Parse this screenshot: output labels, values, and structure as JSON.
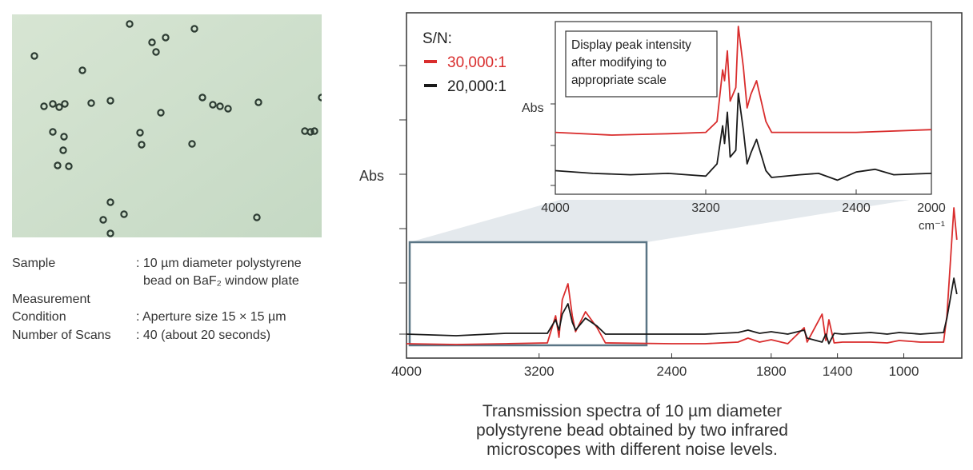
{
  "sample_info": {
    "rows": [
      {
        "label": "Sample",
        "value": ": 10 µm diameter polystyrene"
      },
      {
        "label": "",
        "value": "bead on BaF₂ window plate"
      },
      {
        "label": "Measurement",
        "value": ""
      },
      {
        "label": "Condition",
        "value": ": Aperture size 15 × 15 µm"
      },
      {
        "label": "Number of Scans",
        "value": ": 40 (about 20 seconds)"
      }
    ]
  },
  "caption": [
    "Transmission spectra of 10 µm diameter",
    "polystyrene bead obtained by two infrared",
    "microscopes with different noise levels."
  ],
  "chart_data": [
    {
      "type": "line",
      "panel": "main",
      "ylabel": "Abs",
      "xlim": [
        4000,
        650
      ],
      "xticks": [
        "4000",
        "3200",
        "2400",
        "1800",
        "1400",
        "1000"
      ],
      "legend_title": "S/N:",
      "series": [
        {
          "name": "30,000:1",
          "color": "#d92d2d",
          "points": [
            [
              4000,
              0.2
            ],
            [
              3700,
              0.19
            ],
            [
              3400,
              0.2
            ],
            [
              3150,
              0.21
            ],
            [
              3100,
              0.55
            ],
            [
              3080,
              0.28
            ],
            [
              3060,
              0.75
            ],
            [
              3026,
              0.95
            ],
            [
              3000,
              0.55
            ],
            [
              2980,
              0.35
            ],
            [
              2920,
              0.6
            ],
            [
              2850,
              0.4
            ],
            [
              2800,
              0.21
            ],
            [
              2400,
              0.2
            ],
            [
              2200,
              0.2
            ],
            [
              2000,
              0.22
            ],
            [
              1940,
              0.27
            ],
            [
              1870,
              0.22
            ],
            [
              1800,
              0.25
            ],
            [
              1700,
              0.2
            ],
            [
              1601,
              0.4
            ],
            [
              1583,
              0.22
            ],
            [
              1493,
              0.57
            ],
            [
              1470,
              0.24
            ],
            [
              1452,
              0.5
            ],
            [
              1420,
              0.21
            ],
            [
              1370,
              0.22
            ],
            [
              1200,
              0.22
            ],
            [
              1100,
              0.21
            ],
            [
              1028,
              0.24
            ],
            [
              900,
              0.22
            ],
            [
              760,
              0.22
            ],
            [
              740,
              0.55
            ],
            [
              698,
              1.9
            ],
            [
              680,
              1.5
            ]
          ]
        },
        {
          "name": "20,000:1",
          "color": "#1a1a1a",
          "points": [
            [
              4000,
              0.0
            ],
            [
              3700,
              -0.02
            ],
            [
              3400,
              0.01
            ],
            [
              3150,
              0.01
            ],
            [
              3100,
              0.18
            ],
            [
              3080,
              0.05
            ],
            [
              3060,
              0.25
            ],
            [
              3026,
              0.38
            ],
            [
              3000,
              0.15
            ],
            [
              2980,
              0.05
            ],
            [
              2920,
              0.2
            ],
            [
              2850,
              0.1
            ],
            [
              2800,
              0.0
            ],
            [
              2400,
              0.0
            ],
            [
              2200,
              0.0
            ],
            [
              2000,
              0.02
            ],
            [
              1940,
              0.05
            ],
            [
              1870,
              0.01
            ],
            [
              1800,
              0.03
            ],
            [
              1700,
              0.0
            ],
            [
              1601,
              0.05
            ],
            [
              1583,
              -0.05
            ],
            [
              1493,
              -0.1
            ],
            [
              1470,
              0.0
            ],
            [
              1452,
              -0.12
            ],
            [
              1420,
              0.01
            ],
            [
              1370,
              0.0
            ],
            [
              1200,
              0.02
            ],
            [
              1100,
              0.0
            ],
            [
              1028,
              0.02
            ],
            [
              900,
              0.0
            ],
            [
              760,
              0.02
            ],
            [
              740,
              0.2
            ],
            [
              698,
              0.7
            ],
            [
              680,
              0.5
            ]
          ]
        }
      ]
    },
    {
      "type": "line",
      "panel": "inset",
      "ylabel": "Abs",
      "xlim": [
        4000,
        2000
      ],
      "xticks": [
        "4000",
        "3200",
        "2400",
        "2000"
      ],
      "xunit": "cm⁻¹",
      "note": [
        "Display peak intensity",
        "after modifying to",
        "appropriate scale"
      ],
      "series": [
        {
          "name": "30,000:1",
          "color": "#d92d2d",
          "points": [
            [
              4000,
              0.22
            ],
            [
              3700,
              0.2
            ],
            [
              3400,
              0.21
            ],
            [
              3200,
              0.22
            ],
            [
              3140,
              0.3
            ],
            [
              3110,
              0.68
            ],
            [
              3100,
              0.6
            ],
            [
              3085,
              0.82
            ],
            [
              3070,
              0.45
            ],
            [
              3040,
              0.55
            ],
            [
              3027,
              1.0
            ],
            [
              3000,
              0.7
            ],
            [
              2980,
              0.4
            ],
            [
              2960,
              0.5
            ],
            [
              2930,
              0.6
            ],
            [
              2880,
              0.3
            ],
            [
              2850,
              0.22
            ],
            [
              2600,
              0.22
            ],
            [
              2400,
              0.22
            ],
            [
              2000,
              0.24
            ]
          ]
        },
        {
          "name": "20,000:1",
          "color": "#1a1a1a",
          "points": [
            [
              4000,
              0.05
            ],
            [
              3800,
              0.03
            ],
            [
              3600,
              0.02
            ],
            [
              3400,
              0.03
            ],
            [
              3300,
              0.02
            ],
            [
              3200,
              0.01
            ],
            [
              3140,
              0.1
            ],
            [
              3110,
              0.38
            ],
            [
              3100,
              0.25
            ],
            [
              3085,
              0.48
            ],
            [
              3070,
              0.15
            ],
            [
              3040,
              0.2
            ],
            [
              3027,
              0.62
            ],
            [
              3000,
              0.35
            ],
            [
              2980,
              0.1
            ],
            [
              2960,
              0.18
            ],
            [
              2930,
              0.28
            ],
            [
              2880,
              0.05
            ],
            [
              2850,
              0.0
            ],
            [
              2700,
              0.02
            ],
            [
              2600,
              0.03
            ],
            [
              2500,
              -0.02
            ],
            [
              2400,
              0.04
            ],
            [
              2300,
              0.06
            ],
            [
              2200,
              0.02
            ],
            [
              2000,
              0.03
            ]
          ]
        }
      ]
    }
  ]
}
